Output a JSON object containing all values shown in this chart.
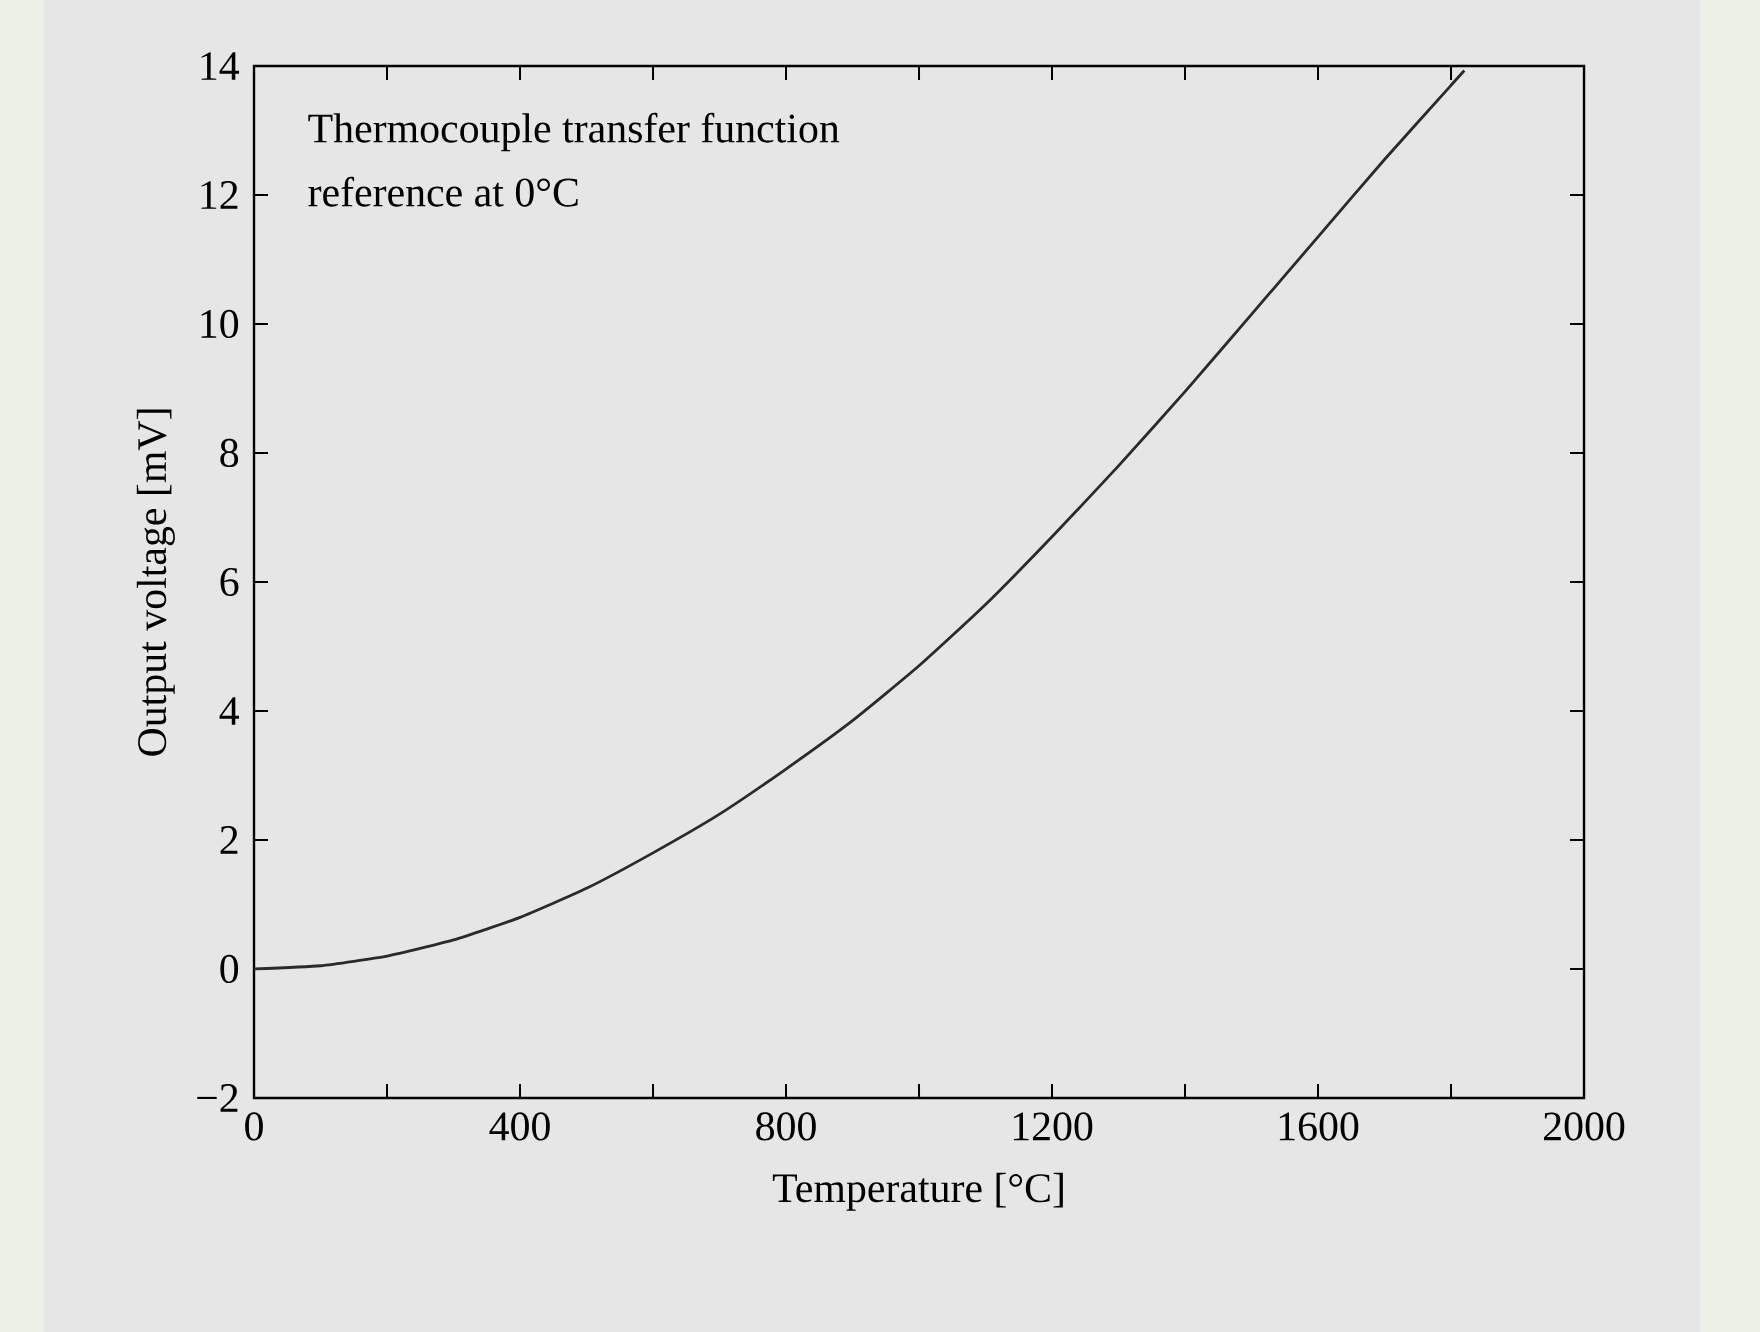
{
  "chart_data": {
    "type": "line",
    "xlabel": "Temperature [°C]",
    "ylabel": "Output voltage [mV]",
    "annotations": [
      "Thermocouple transfer function",
      "reference at 0°C"
    ],
    "x": [
      0,
      100,
      200,
      300,
      400,
      500,
      600,
      700,
      800,
      900,
      1000,
      1100,
      1200,
      1300,
      1400,
      1500,
      1600,
      1700,
      1800,
      1820
    ],
    "series": [
      {
        "color": "#2a2a2a",
        "values": [
          0,
          0.05,
          0.2,
          0.45,
          0.8,
          1.25,
          1.8,
          2.4,
          3.1,
          3.85,
          4.7,
          5.65,
          6.7,
          7.8,
          8.95,
          10.15,
          11.35,
          12.55,
          13.7,
          13.93
        ]
      }
    ],
    "xlim": [
      0,
      2000
    ],
    "ylim": [
      -2,
      14
    ],
    "xticks": [
      0,
      {
        "value": 200,
        "label": null
      },
      400,
      {
        "value": 600,
        "label": null
      },
      800,
      {
        "value": 1000,
        "label": null
      },
      1200,
      {
        "value": 1400,
        "label": null
      },
      1600,
      {
        "value": 1800,
        "label": null
      },
      2000
    ],
    "yticks": [
      {
        "value": -2,
        "label": "−2"
      },
      0,
      2,
      4,
      6,
      8,
      10,
      12,
      14
    ],
    "grid": false,
    "marker": "none",
    "line_style": "solid"
  }
}
